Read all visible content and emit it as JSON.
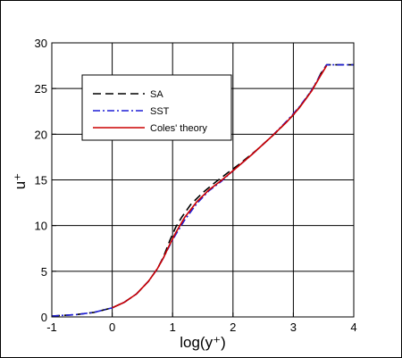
{
  "chart_data": {
    "type": "line",
    "title": "",
    "xlabel": "log(y⁺)",
    "ylabel": "u⁺",
    "xlim": [
      -1,
      4
    ],
    "ylim": [
      0,
      30
    ],
    "xticks": [
      -1,
      0,
      1,
      2,
      3,
      4
    ],
    "yticks": [
      0,
      5,
      10,
      15,
      20,
      25,
      30
    ],
    "grid": true,
    "legend_position": "top-left",
    "series": [
      {
        "name": "SA",
        "color": "#000000",
        "dash": "dashed",
        "points": [
          [
            -1,
            0.1
          ],
          [
            -0.6,
            0.25
          ],
          [
            -0.3,
            0.5
          ],
          [
            0,
            1.0
          ],
          [
            0.2,
            1.6
          ],
          [
            0.4,
            2.5
          ],
          [
            0.6,
            3.9
          ],
          [
            0.75,
            5.3
          ],
          [
            0.85,
            6.6
          ],
          [
            0.95,
            8.3
          ],
          [
            1.05,
            9.8
          ],
          [
            1.15,
            10.9
          ],
          [
            1.3,
            12.3
          ],
          [
            1.5,
            13.6
          ],
          [
            1.7,
            14.7
          ],
          [
            1.9,
            15.7
          ],
          [
            2.1,
            16.7
          ],
          [
            2.4,
            18.3
          ],
          [
            2.7,
            20.1
          ],
          [
            3.0,
            22.1
          ],
          [
            3.2,
            23.8
          ],
          [
            3.35,
            25.3
          ],
          [
            3.45,
            26.6
          ],
          [
            3.55,
            27.6
          ],
          [
            4.0,
            27.6
          ]
        ]
      },
      {
        "name": "SST",
        "color": "#1f1fd6",
        "dash": "dashdot",
        "points": [
          [
            -1,
            0.1
          ],
          [
            -0.6,
            0.25
          ],
          [
            -0.3,
            0.5
          ],
          [
            0,
            1.0
          ],
          [
            0.2,
            1.6
          ],
          [
            0.4,
            2.5
          ],
          [
            0.6,
            3.9
          ],
          [
            0.75,
            5.3
          ],
          [
            0.85,
            6.5
          ],
          [
            0.95,
            7.8
          ],
          [
            1.05,
            9.0
          ],
          [
            1.2,
            10.6
          ],
          [
            1.4,
            12.4
          ],
          [
            1.6,
            13.8
          ],
          [
            1.8,
            14.8
          ],
          [
            2.0,
            16.0
          ],
          [
            2.3,
            17.7
          ],
          [
            2.6,
            19.5
          ],
          [
            2.9,
            21.5
          ],
          [
            3.1,
            23.0
          ],
          [
            3.3,
            24.8
          ],
          [
            3.45,
            26.5
          ],
          [
            3.55,
            27.6
          ],
          [
            4.0,
            27.6
          ]
        ]
      },
      {
        "name": "Coles' theory",
        "color": "#cc0000",
        "dash": "solid",
        "points": [
          [
            0,
            1.0
          ],
          [
            0.2,
            1.6
          ],
          [
            0.4,
            2.5
          ],
          [
            0.6,
            3.9
          ],
          [
            0.75,
            5.3
          ],
          [
            0.85,
            6.5
          ],
          [
            0.95,
            7.9
          ],
          [
            1.05,
            9.2
          ],
          [
            1.2,
            10.9
          ],
          [
            1.4,
            12.6
          ],
          [
            1.6,
            13.9
          ],
          [
            1.8,
            14.9
          ],
          [
            2.0,
            16.0
          ],
          [
            2.3,
            17.7
          ],
          [
            2.6,
            19.5
          ],
          [
            2.9,
            21.4
          ],
          [
            3.1,
            22.9
          ],
          [
            3.3,
            24.7
          ],
          [
            3.45,
            26.4
          ],
          [
            3.55,
            27.5
          ]
        ]
      }
    ]
  }
}
